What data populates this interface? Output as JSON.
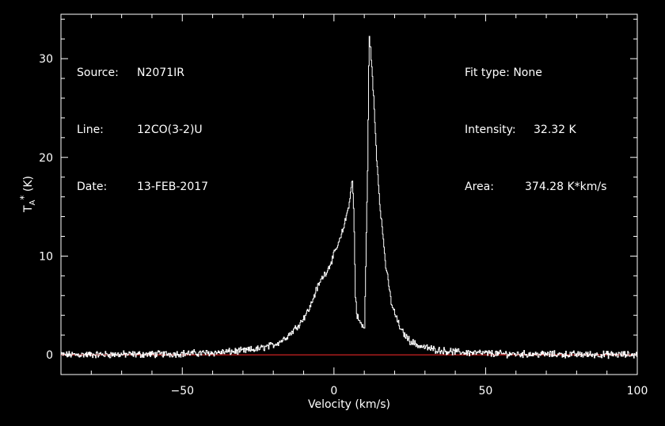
{
  "header_left": {
    "source_label": "Source:",
    "source_value": "N2071IR",
    "line_label": "Line:",
    "line_value": "12CO(3-2)U",
    "date_label": "Date:",
    "date_value": "13-FEB-2017"
  },
  "header_right": {
    "fit_label": "Fit type:",
    "fit_value": "None",
    "intensity_label": "Intensity:",
    "intensity_value": "32.32",
    "intensity_unit": "K",
    "area_label": "Area:",
    "area_value": "374.28",
    "area_unit": "K*km/s"
  },
  "colors": {
    "background": "#000000",
    "foreground": "#ffffff",
    "baseline": "#ff2a2a"
  },
  "chart_data": {
    "type": "line",
    "xlabel": "Velocity (km/s)",
    "ylabel": "T_A^* (K)",
    "xlim": [
      -90,
      100
    ],
    "ylim": [
      -2.0,
      34.5
    ],
    "xticks": [
      -50,
      0,
      50,
      100
    ],
    "xtick_labels": [
      "−50",
      "0",
      "50",
      "100"
    ],
    "yticks": [
      0,
      10,
      20,
      30
    ],
    "ytick_labels": [
      "0",
      "10",
      "20",
      "30"
    ],
    "baseline": 0,
    "grid": false,
    "series": [
      {
        "x": [
          -90,
          -60,
          -40,
          -30,
          -25,
          -20,
          -17,
          -14,
          -11,
          -8,
          -6,
          -4,
          -2,
          0,
          2,
          3,
          4,
          5,
          6,
          6.5,
          7,
          7.5,
          8,
          9,
          10,
          11,
          11.5,
          12,
          13,
          14,
          15,
          17,
          19,
          22,
          25,
          28,
          32,
          36,
          42,
          55,
          70,
          100
        ],
        "y": [
          0,
          0.05,
          0.2,
          0.4,
          0.6,
          1.0,
          1.5,
          2.3,
          3.3,
          4.8,
          6.5,
          7.8,
          8.7,
          10.2,
          11.7,
          12.8,
          14.0,
          15.5,
          17.8,
          14.0,
          6.0,
          4.0,
          3.6,
          3.0,
          2.7,
          18.5,
          32.3,
          31.0,
          26.0,
          20.0,
          15.5,
          9.0,
          5.0,
          2.5,
          1.4,
          0.9,
          0.6,
          0.4,
          0.25,
          0.1,
          0.05,
          0
        ]
      }
    ]
  }
}
